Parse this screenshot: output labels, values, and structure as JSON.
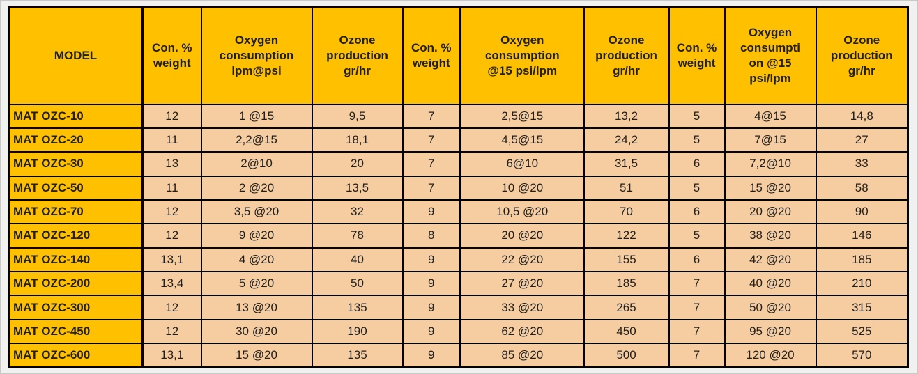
{
  "colors": {
    "header_bg": "#FFC000",
    "cell_bg": "#F6CDA0",
    "border": "#000000",
    "text": "#1f1f1f",
    "page_bg": "#F1F1EF"
  },
  "table": {
    "columns": [
      "MODEL",
      "Con. %\nweight",
      "Oxygen\nconsumption\nlpm@psi",
      "Ozone\nproduction\ngr/hr",
      "Con. %\nweight",
      "Oxygen\nconsumption\n@15 psi/lpm",
      "Ozone\nproduction\ngr/hr",
      "Con. %\nweight",
      "Oxygen\nconsumpti\non @15\npsi/lpm",
      "Ozone\nproduction\ngr/hr"
    ],
    "rows": [
      {
        "model": "MAT OZC-10",
        "values": [
          "12",
          "1 @15",
          "9,5",
          "7",
          "2,5@15",
          "13,2",
          "5",
          "4@15",
          "14,8"
        ]
      },
      {
        "model": "MAT OZC-20",
        "values": [
          "11",
          "2,2@15",
          "18,1",
          "7",
          "4,5@15",
          "24,2",
          "5",
          "7@15",
          "27"
        ]
      },
      {
        "model": "MAT OZC-30",
        "values": [
          "13",
          "2@10",
          "20",
          "7",
          "6@10",
          "31,5",
          "6",
          "7,2@10",
          "33"
        ]
      },
      {
        "model": "MAT OZC-50",
        "values": [
          "11",
          "2 @20",
          "13,5",
          "7",
          "10 @20",
          "51",
          "5",
          "15 @20",
          "58"
        ]
      },
      {
        "model": "MAT OZC-70",
        "values": [
          "12",
          "3,5 @20",
          "32",
          "9",
          "10,5 @20",
          "70",
          "6",
          "20 @20",
          "90"
        ]
      },
      {
        "model": "MAT OZC-120",
        "values": [
          "12",
          "9 @20",
          "78",
          "8",
          "20 @20",
          "122",
          "5",
          "38 @20",
          "146"
        ]
      },
      {
        "model": "MAT OZC-140",
        "values": [
          "13,1",
          "4 @20",
          "40",
          "9",
          "22 @20",
          "155",
          "6",
          "42 @20",
          "185"
        ]
      },
      {
        "model": "MAT OZC-200",
        "values": [
          "13,4",
          "5 @20",
          "50",
          "9",
          "27 @20",
          "185",
          "7",
          "40 @20",
          "210"
        ]
      },
      {
        "model": "MAT OZC-300",
        "values": [
          "12",
          "13 @20",
          "135",
          "9",
          "33 @20",
          "265",
          "7",
          "50 @20",
          "315"
        ]
      },
      {
        "model": "MAT OZC-450",
        "values": [
          "12",
          "30 @20",
          "190",
          "9",
          "62 @20",
          "450",
          "7",
          "95 @20",
          "525"
        ]
      },
      {
        "model": "MAT OZC-600",
        "values": [
          "13,1",
          "15 @20",
          "135",
          "9",
          "85 @20",
          "500",
          "7",
          "120 @20",
          "570"
        ]
      }
    ]
  }
}
